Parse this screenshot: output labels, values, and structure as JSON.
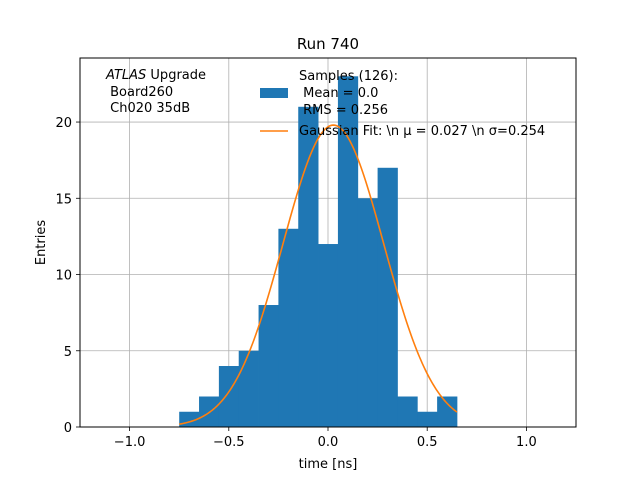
{
  "chart_data": {
    "type": "bar",
    "title": "Run 740",
    "xlabel": "time [ns]",
    "ylabel": "Entries",
    "xlim": [
      -1.25,
      1.25
    ],
    "ylim": [
      0,
      24.2
    ],
    "grid": true,
    "x_ticks": [
      -1.0,
      -0.5,
      0.0,
      0.5,
      1.0
    ],
    "x_tick_labels": [
      "−1.0",
      "−0.5",
      "0.0",
      "0.5",
      "1.0"
    ],
    "y_ticks": [
      0,
      5,
      10,
      15,
      20
    ],
    "y_tick_labels": [
      "0",
      "5",
      "10",
      "15",
      "20"
    ],
    "bin_edges": [
      -0.75,
      -0.65,
      -0.55,
      -0.45,
      -0.35,
      -0.25,
      -0.15,
      -0.05,
      0.05,
      0.15,
      0.25,
      0.35,
      0.45,
      0.55,
      0.65
    ],
    "counts": [
      1,
      2,
      4,
      5,
      8,
      13,
      21,
      12,
      23,
      15,
      17,
      2,
      1,
      2
    ],
    "histogram_color": "#1f77b4",
    "fit": {
      "type": "gaussian",
      "amplitude": 19.8,
      "mu": 0.027,
      "sigma": 0.254,
      "x_range": [
        -0.75,
        0.65
      ],
      "color": "#ff7f0e"
    },
    "annotation_lines": [
      "ATLAS",
      "Upgrade",
      "Board260",
      "Ch020 35dB"
    ],
    "legend": {
      "position": "top-center",
      "entries": [
        {
          "label_lines": [
            "Samples (126):",
            " Mean = 0.0",
            " RMS = 0.256"
          ],
          "kind": "patch",
          "color": "#1f77b4"
        },
        {
          "label_lines": [
            "Gaussian Fit: \\n μ = 0.027 \\n σ=0.254"
          ],
          "kind": "line",
          "color": "#ff7f0e"
        }
      ]
    }
  }
}
